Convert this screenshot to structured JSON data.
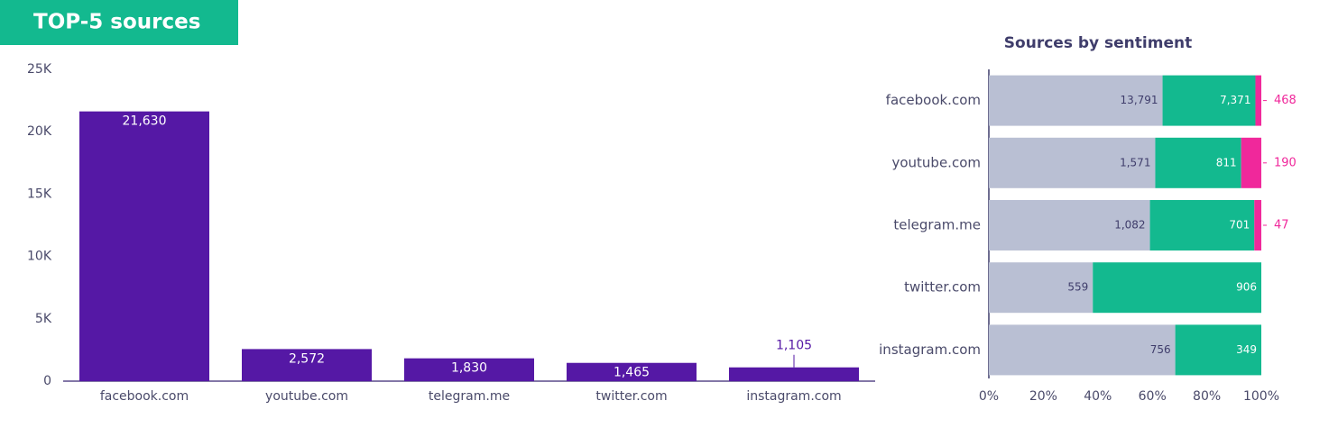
{
  "chart_data": [
    {
      "type": "bar",
      "title": "TOP-5 sources",
      "categories": [
        "facebook.com",
        "youtube.com",
        "telegram.me",
        "twitter.com",
        "instagram.com"
      ],
      "values": [
        21630,
        2572,
        1830,
        1465,
        1105
      ],
      "value_labels": [
        "21,630",
        "2,572",
        "1,830",
        "1,465",
        "1,105"
      ],
      "color": "#5518a5",
      "ylim": [
        0,
        25000
      ],
      "yticks": [
        0,
        {
          "value": 5000,
          "label": "5K"
        },
        {
          "value": 10000,
          "label": "10K"
        },
        {
          "value": 15000,
          "label": "15K"
        },
        {
          "value": 20000,
          "label": "20K"
        },
        {
          "value": 25000,
          "label": "25K"
        }
      ],
      "grid": false
    },
    {
      "type": "stacked-hbar-percent",
      "title": "Sources by sentiment",
      "categories": [
        "facebook.com",
        "youtube.com",
        "telegram.me",
        "twitter.com",
        "instagram.com"
      ],
      "series": [
        {
          "color": "#b9bfd3",
          "values": [
            13791,
            1571,
            1082,
            559,
            756
          ],
          "value_labels": [
            "13,791",
            "1,571",
            "1,082",
            "559",
            "756"
          ]
        },
        {
          "color": "#13b98f",
          "values": [
            7371,
            811,
            701,
            906,
            349
          ],
          "value_labels": [
            "7,371",
            "811",
            "701",
            "906",
            "349"
          ]
        },
        {
          "color": "#f0289b",
          "values": [
            468,
            190,
            47,
            null,
            null
          ],
          "value_labels": [
            "468",
            "190",
            "47",
            null,
            null
          ]
        }
      ],
      "xlim": [
        0,
        100
      ],
      "xticks": [
        {
          "value": 0,
          "label": "0%"
        },
        {
          "value": 20,
          "label": "20%"
        },
        {
          "value": 40,
          "label": "40%"
        },
        {
          "value": 60,
          "label": "60%"
        },
        {
          "value": 80,
          "label": "80%"
        },
        {
          "value": 100,
          "label": "100%"
        }
      ]
    }
  ]
}
